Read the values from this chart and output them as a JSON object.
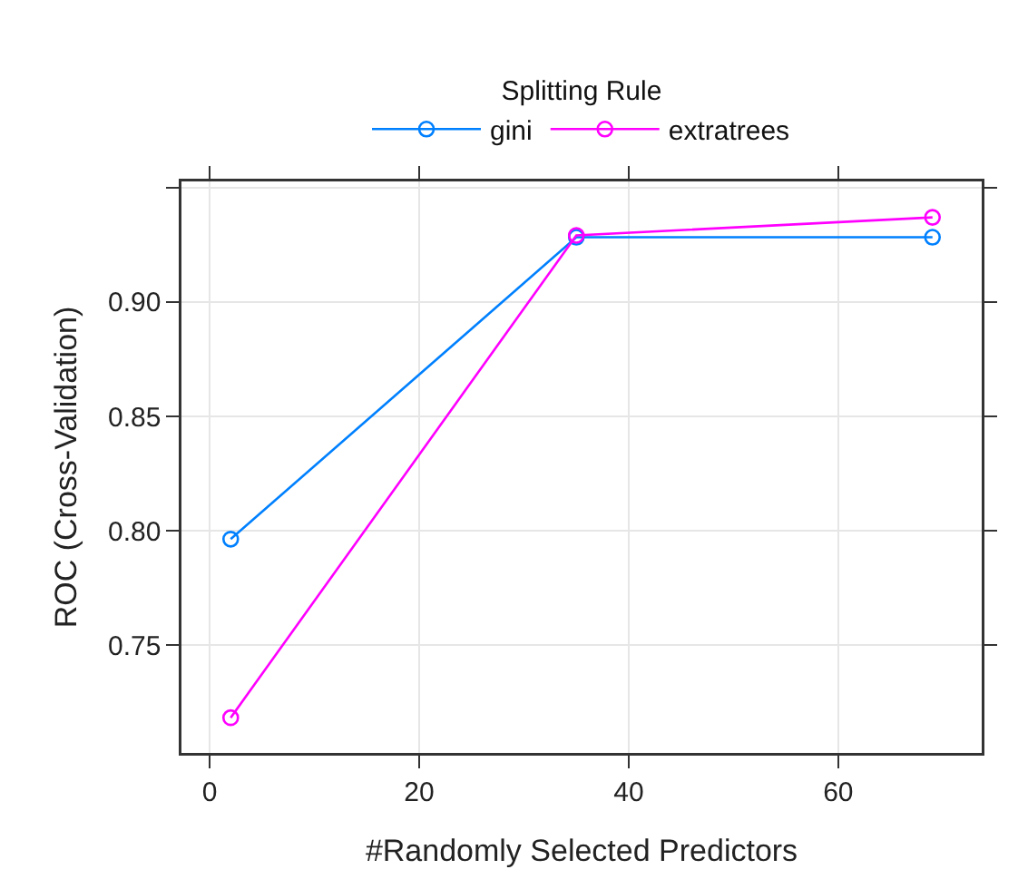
{
  "chart_data": {
    "type": "line",
    "xlabel": "#Randomly Selected Predictors",
    "ylabel": "ROC (Cross-Validation)",
    "legend_title": "Splitting Rule",
    "x": [
      2,
      35,
      69
    ],
    "series": [
      {
        "name": "gini",
        "color": "#0080ff",
        "values": [
          0.7964,
          0.9283,
          0.9283
        ]
      },
      {
        "name": "extratrees",
        "color": "#ff00ff",
        "values": [
          0.7184,
          0.9291,
          0.937
        ]
      }
    ],
    "xlim": [
      -2.7,
      73.7
    ],
    "xticks": [
      0,
      20,
      40,
      60
    ],
    "ylim": [
      0.703,
      0.9527
    ],
    "yticks": [
      0.75,
      {
        "value": 0.8,
        "label": "0.80"
      },
      0.85,
      {
        "value": 0.9,
        "label": "0.90"
      },
      {
        "value": 0.95,
        "label": null
      }
    ],
    "grid": true,
    "legend": "top",
    "marker": "circle",
    "line_style": "solid"
  }
}
